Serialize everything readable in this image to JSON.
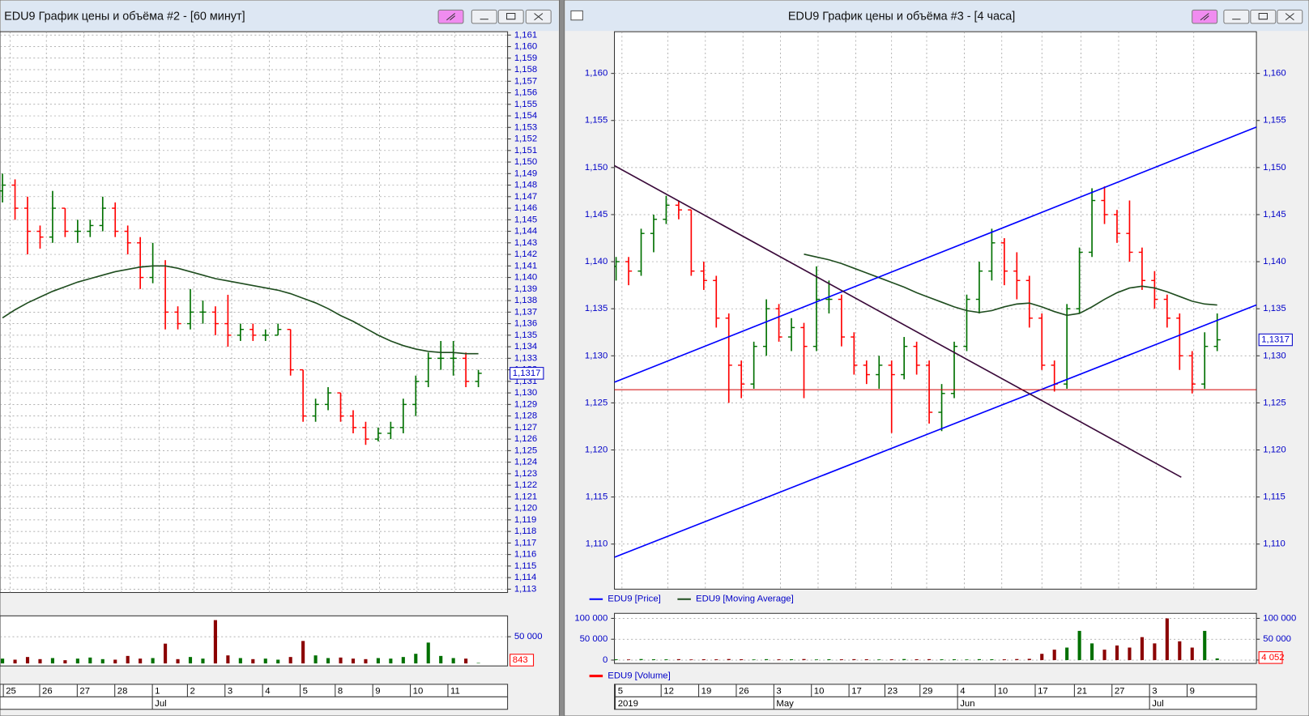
{
  "windows": [
    {
      "title": "EDU9 График цены и объёма #2 - [60 минут]",
      "chart": {
        "type": "ohlc",
        "up_color": "#007000",
        "down_color": "#ff0000",
        "ma_color": "#1f4d1f",
        "grid": true,
        "xlim": [
          -0.2,
          40.33
        ],
        "ylim": [
          1.11271,
          1.16129
        ],
        "yticks": [
          {
            "value": 1.113,
            "label": "1,113"
          },
          {
            "value": 1.114,
            "label": "1,114"
          },
          {
            "value": 1.115,
            "label": "1,115"
          },
          {
            "value": 1.116,
            "label": "1,116"
          },
          {
            "value": 1.117,
            "label": "1,117"
          },
          {
            "value": 1.118,
            "label": "1,118"
          },
          {
            "value": 1.119,
            "label": "1,119"
          },
          {
            "value": 1.12,
            "label": "1,120"
          },
          {
            "value": 1.121,
            "label": "1,121"
          },
          {
            "value": 1.122,
            "label": "1,122"
          },
          {
            "value": 1.123,
            "label": "1,123"
          },
          {
            "value": 1.124,
            "label": "1,124"
          },
          {
            "value": 1.125,
            "label": "1,125"
          },
          {
            "value": 1.126,
            "label": "1,126"
          },
          {
            "value": 1.127,
            "label": "1,127"
          },
          {
            "value": 1.128,
            "label": "1,128"
          },
          {
            "value": 1.129,
            "label": "1,129"
          },
          {
            "value": 1.13,
            "label": "1,130"
          },
          {
            "value": 1.131,
            "label": "1,131"
          },
          {
            "value": 1.132,
            "label": "1,132"
          },
          {
            "value": 1.133,
            "label": "1,133"
          },
          {
            "value": 1.134,
            "label": "1,134"
          },
          {
            "value": 1.135,
            "label": "1,135"
          },
          {
            "value": 1.136,
            "label": "1,136"
          },
          {
            "value": 1.137,
            "label": "1,137"
          },
          {
            "value": 1.138,
            "label": "1,138"
          },
          {
            "value": 1.139,
            "label": "1,139"
          },
          {
            "value": 1.14,
            "label": "1,140"
          },
          {
            "value": 1.141,
            "label": "1,141"
          },
          {
            "value": 1.142,
            "label": "1,142"
          },
          {
            "value": 1.143,
            "label": "1,143"
          },
          {
            "value": 1.144,
            "label": "1,144"
          },
          {
            "value": 1.145,
            "label": "1,145"
          },
          {
            "value": 1.146,
            "label": "1,146"
          },
          {
            "value": 1.147,
            "label": "1,147"
          },
          {
            "value": 1.148,
            "label": "1,148"
          },
          {
            "value": 1.149,
            "label": "1,149"
          },
          {
            "value": 1.15,
            "label": "1,150"
          },
          {
            "value": 1.151,
            "label": "1,151"
          },
          {
            "value": 1.152,
            "label": "1,152"
          },
          {
            "value": 1.153,
            "label": "1,153"
          },
          {
            "value": 1.154,
            "label": "1,154"
          },
          {
            "value": 1.155,
            "label": "1,155"
          },
          {
            "value": 1.156,
            "label": "1,156"
          },
          {
            "value": 1.157,
            "label": "1,157"
          },
          {
            "value": 1.158,
            "label": "1,158"
          },
          {
            "value": 1.159,
            "label": "1,159"
          },
          {
            "value": 1.16,
            "label": "1,160"
          },
          {
            "value": 1.161,
            "label": "1,161"
          }
        ],
        "open": [
          1.1475,
          1.148,
          1.146,
          1.144,
          1.1435,
          1.146,
          1.144,
          1.144,
          1.1445,
          1.146,
          1.144,
          1.143,
          1.14,
          1.141,
          1.137,
          1.136,
          1.137,
          1.137,
          1.136,
          1.135,
          1.1355,
          1.135,
          1.135,
          1.1355,
          1.132,
          1.128,
          1.129,
          1.13,
          1.128,
          1.127,
          1.126,
          1.1265,
          1.127,
          1.129,
          1.131,
          1.133,
          1.133,
          1.133,
          1.131
        ],
        "high": [
          1.149,
          1.1485,
          1.147,
          1.1445,
          1.1475,
          1.146,
          1.145,
          1.145,
          1.147,
          1.1465,
          1.1445,
          1.1435,
          1.143,
          1.1415,
          1.1375,
          1.139,
          1.138,
          1.1375,
          1.1385,
          1.136,
          1.136,
          1.1355,
          1.136,
          1.1355,
          1.132,
          1.1295,
          1.1305,
          1.13,
          1.1285,
          1.1275,
          1.127,
          1.1275,
          1.1295,
          1.1315,
          1.1335,
          1.1345,
          1.1345,
          1.1335,
          1.132
        ],
        "low": [
          1.1465,
          1.145,
          1.142,
          1.1425,
          1.143,
          1.1435,
          1.143,
          1.1435,
          1.144,
          1.1435,
          1.142,
          1.139,
          1.1395,
          1.1355,
          1.1355,
          1.1355,
          1.136,
          1.135,
          1.134,
          1.1345,
          1.1345,
          1.1345,
          1.135,
          1.1315,
          1.1275,
          1.1275,
          1.1285,
          1.1275,
          1.1265,
          1.1255,
          1.1258,
          1.126,
          1.1265,
          1.128,
          1.1305,
          1.132,
          1.1315,
          1.1305,
          1.1305
        ],
        "close": [
          1.148,
          1.146,
          1.144,
          1.1435,
          1.146,
          1.144,
          1.144,
          1.1445,
          1.146,
          1.144,
          1.143,
          1.14,
          1.141,
          1.137,
          1.136,
          1.137,
          1.137,
          1.136,
          1.135,
          1.1355,
          1.135,
          1.135,
          1.1355,
          1.132,
          1.128,
          1.129,
          1.13,
          1.128,
          1.127,
          1.126,
          1.1265,
          1.127,
          1.129,
          1.131,
          1.133,
          1.133,
          1.133,
          1.131,
          1.1317
        ],
        "ma": [
          1.1365,
          1.1372,
          1.1378,
          1.1383,
          1.1388,
          1.1392,
          1.1396,
          1.1399,
          1.1402,
          1.1405,
          1.1407,
          1.1409,
          1.141,
          1.141,
          1.1408,
          1.1405,
          1.1402,
          1.1399,
          1.1397,
          1.1395,
          1.1393,
          1.1391,
          1.1389,
          1.1386,
          1.1382,
          1.1378,
          1.1373,
          1.1367,
          1.1362,
          1.1356,
          1.135,
          1.1345,
          1.1341,
          1.1338,
          1.1336,
          1.1335,
          1.1335,
          1.1334,
          1.1334
        ],
        "last_price": {
          "value": 1.1317,
          "label": "1,1317"
        },
        "volume": [
          9000,
          7000,
          12000,
          8000,
          10000,
          6000,
          9000,
          11000,
          8000,
          7000,
          14000,
          9000,
          10000,
          37000,
          8000,
          12000,
          9000,
          81000,
          15000,
          10000,
          8000,
          9000,
          7000,
          12000,
          42000,
          15000,
          10000,
          11000,
          9000,
          8000,
          10000,
          9000,
          12000,
          18000,
          39000,
          14000,
          10000,
          9000,
          843
        ],
        "volume_ylim": [
          -4700,
          89000
        ],
        "volume_ticks": [
          {
            "value": 50000,
            "label": "50 000"
          }
        ],
        "last_volume": 843,
        "x_labels": [
          {
            "value": 0.6,
            "label": "25"
          },
          {
            "value": 3.5,
            "label": "26"
          },
          {
            "value": 6.5,
            "label": "27"
          },
          {
            "value": 9.5,
            "label": "28"
          },
          {
            "value": 12.5,
            "label": "1"
          },
          {
            "value": 15.3,
            "label": "2"
          },
          {
            "value": 18.3,
            "label": "3"
          },
          {
            "value": 21.3,
            "label": "4"
          },
          {
            "value": 24.3,
            "label": "5"
          },
          {
            "value": 27.1,
            "label": "8"
          },
          {
            "value": 30.1,
            "label": "9"
          },
          {
            "value": 33.1,
            "label": "10"
          },
          {
            "value": 36.1,
            "label": "11"
          }
        ],
        "x_labels_2": [
          {
            "value": 12.5,
            "label": "Jul"
          }
        ]
      }
    },
    {
      "title": "EDU9 График цены и объёма #3 - [4 часа]",
      "chart": {
        "type": "ohlc",
        "up_color": "#007000",
        "down_color": "#ff0000",
        "ma_color": "#1f4d1f",
        "grid": true,
        "xlim": [
          -0.133,
          51.13
        ],
        "ylim": [
          1.10521,
          1.16443
        ],
        "yticks": [
          {
            "value": 1.11,
            "label": "1,110"
          },
          {
            "value": 1.115,
            "label": "1,115"
          },
          {
            "value": 1.12,
            "label": "1,120"
          },
          {
            "value": 1.125,
            "label": "1,125"
          },
          {
            "value": 1.13,
            "label": "1,130"
          },
          {
            "value": 1.135,
            "label": "1,135"
          },
          {
            "value": 1.14,
            "label": "1,140"
          },
          {
            "value": 1.145,
            "label": "1,145"
          },
          {
            "value": 1.15,
            "label": "1,150"
          },
          {
            "value": 1.155,
            "label": "1,155"
          },
          {
            "value": 1.16,
            "label": "1,160"
          }
        ],
        "open": [
          1.1395,
          1.14,
          1.139,
          1.143,
          1.1445,
          1.146,
          1.1455,
          1.139,
          1.138,
          1.134,
          1.129,
          1.127,
          1.131,
          1.135,
          1.132,
          1.133,
          1.131,
          1.136,
          1.136,
          1.132,
          1.129,
          1.128,
          1.129,
          1.128,
          1.131,
          1.129,
          1.124,
          1.126,
          1.131,
          1.136,
          1.139,
          1.142,
          1.139,
          1.138,
          1.134,
          1.129,
          1.127,
          1.135,
          1.141,
          1.1465,
          1.145,
          1.143,
          1.141,
          1.138,
          1.136,
          1.134,
          1.13,
          1.127,
          1.131
        ],
        "high": [
          1.1405,
          1.1405,
          1.1435,
          1.145,
          1.147,
          1.1465,
          1.1455,
          1.14,
          1.1385,
          1.1345,
          1.1295,
          1.1315,
          1.136,
          1.1355,
          1.134,
          1.1335,
          1.1395,
          1.138,
          1.1365,
          1.1325,
          1.1295,
          1.13,
          1.1295,
          1.132,
          1.1315,
          1.1295,
          1.127,
          1.1315,
          1.1365,
          1.14,
          1.1435,
          1.1425,
          1.141,
          1.1385,
          1.1345,
          1.1295,
          1.1355,
          1.1415,
          1.1478,
          1.148,
          1.1455,
          1.1465,
          1.1415,
          1.139,
          1.1365,
          1.1345,
          1.1305,
          1.1325,
          1.1345
        ],
        "low": [
          1.138,
          1.1375,
          1.1385,
          1.141,
          1.144,
          1.1445,
          1.1385,
          1.137,
          1.133,
          1.125,
          1.1255,
          1.1265,
          1.13,
          1.1315,
          1.1305,
          1.1255,
          1.1305,
          1.1345,
          1.131,
          1.128,
          1.127,
          1.1265,
          1.1218,
          1.1275,
          1.128,
          1.1228,
          1.122,
          1.1255,
          1.1305,
          1.1345,
          1.138,
          1.1375,
          1.136,
          1.133,
          1.1285,
          1.1262,
          1.1265,
          1.1345,
          1.1405,
          1.144,
          1.142,
          1.14,
          1.137,
          1.135,
          1.133,
          1.1285,
          1.126,
          1.1265,
          1.1305
        ],
        "close": [
          1.14,
          1.139,
          1.143,
          1.1445,
          1.146,
          1.1455,
          1.139,
          1.138,
          1.134,
          1.129,
          1.127,
          1.131,
          1.135,
          1.132,
          1.133,
          1.131,
          1.136,
          1.136,
          1.132,
          1.129,
          1.128,
          1.129,
          1.128,
          1.131,
          1.129,
          1.124,
          1.126,
          1.131,
          1.136,
          1.139,
          1.142,
          1.139,
          1.138,
          1.134,
          1.129,
          1.127,
          1.135,
          1.141,
          1.1465,
          1.145,
          1.143,
          1.141,
          1.138,
          1.136,
          1.134,
          1.13,
          1.127,
          1.131,
          1.1317
        ],
        "ma": [
          null,
          null,
          null,
          null,
          null,
          null,
          null,
          null,
          null,
          null,
          null,
          null,
          null,
          null,
          null,
          1.1408,
          1.1405,
          1.1402,
          1.1398,
          1.1393,
          1.1388,
          1.1383,
          1.1378,
          1.1373,
          1.1367,
          1.1362,
          1.1357,
          1.1352,
          1.1348,
          1.1346,
          1.1348,
          1.1352,
          1.1355,
          1.1356,
          1.1352,
          1.1347,
          1.1343,
          1.1345,
          1.1352,
          1.136,
          1.1367,
          1.1372,
          1.1374,
          1.1372,
          1.1368,
          1.1363,
          1.1358,
          1.1355,
          1.1354
        ],
        "lines": [
          {
            "color": "#0000ff",
            "x": [
              -0.133,
              51.13
            ],
            "y": [
              1.1272,
              1.1543
            ]
          },
          {
            "color": "#0000ff",
            "x": [
              -0.133,
              51.13
            ],
            "y": [
              1.1086,
              1.1354
            ]
          },
          {
            "color": "#3a0a3a",
            "x": [
              -0.133,
              45.13
            ],
            "y": [
              1.1502,
              1.1171
            ]
          },
          {
            "color": "#d00000",
            "x": [
              -0.133,
              51.13
            ],
            "y": [
              1.1264,
              1.1264
            ]
          }
        ],
        "last_price": {
          "value": 1.1317,
          "label": "1,1317"
        },
        "legend": [
          {
            "name": "EDU9 [Price]",
            "color": "#0000ff"
          },
          {
            "name": "EDU9 [Moving Average]",
            "color": "#1f4d1f"
          }
        ],
        "volume": [
          2000,
          1500,
          2500,
          2000,
          1800,
          2200,
          1500,
          2000,
          1800,
          2500,
          2000,
          1500,
          2200,
          1800,
          2000,
          2500,
          1500,
          2000,
          1800,
          2200,
          2000,
          1500,
          1800,
          2500,
          2000,
          2200,
          1800,
          2000,
          1500,
          2200,
          2000,
          1800,
          2500,
          3000,
          15000,
          25000,
          30000,
          70000,
          40000,
          25000,
          35000,
          30000,
          55000,
          40000,
          100000,
          45000,
          30000,
          70000,
          4052
        ],
        "volume_ylim": [
          -8000,
          112000
        ],
        "volume_ticks": [
          0,
          {
            "value": 50000,
            "label": "50 000"
          },
          {
            "value": 100000,
            "label": "100 000"
          }
        ],
        "last_volume": {
          "value": 4052,
          "label": "4 052"
        },
        "volume_legend": {
          "name": "EDU9 [Volume]",
          "color": "#ff0000"
        },
        "x_labels": [
          {
            "value": 0.47,
            "label": "5"
          },
          {
            "value": 4.13,
            "label": "12"
          },
          {
            "value": 7.13,
            "label": "19"
          },
          {
            "value": 10.13,
            "label": "26"
          },
          {
            "value": 13.13,
            "label": "3"
          },
          {
            "value": 16.13,
            "label": "10"
          },
          {
            "value": 19.13,
            "label": "17"
          },
          {
            "value": 22,
            "label": "23"
          },
          {
            "value": 24.8,
            "label": "29"
          },
          {
            "value": 27.8,
            "label": "4"
          },
          {
            "value": 30.8,
            "label": "10"
          },
          {
            "value": 34,
            "label": "17"
          },
          {
            "value": 37.13,
            "label": "21"
          },
          {
            "value": 40.13,
            "label": "27"
          },
          {
            "value": 43.13,
            "label": "3"
          },
          {
            "value": 46.13,
            "label": "9"
          }
        ],
        "x_labels_2": [
          {
            "value": 0.47,
            "label": "2019"
          },
          {
            "value": 13.13,
            "label": "May"
          },
          {
            "value": 27.8,
            "label": "Jun"
          },
          {
            "value": 43.13,
            "label": "Jul"
          }
        ]
      }
    }
  ]
}
